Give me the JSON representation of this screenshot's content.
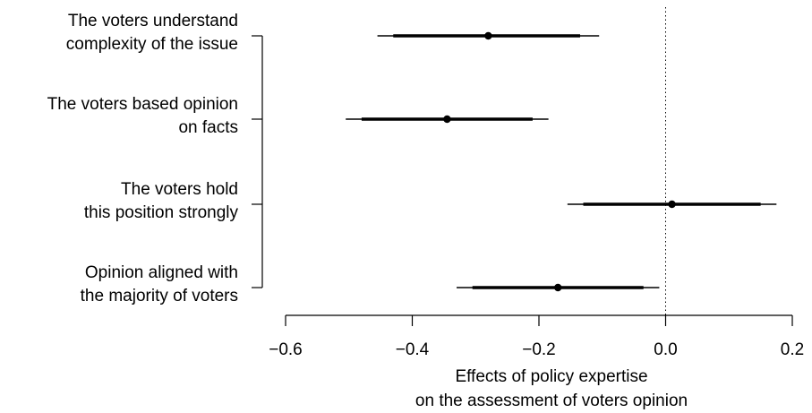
{
  "chart_data": {
    "type": "coefficient-plot",
    "title": "",
    "xlabel": [
      "Effects of policy expertise",
      "on the assessment of voters opinion"
    ],
    "ylabel": "",
    "xlim": [
      -0.6,
      0.2
    ],
    "xticks": [
      {
        "value": -0.6,
        "label": "−0.6"
      },
      {
        "value": -0.4,
        "label": "−0.4"
      },
      {
        "value": -0.2,
        "label": "−0.2"
      },
      {
        "value": 0.0,
        "label": "0.0"
      },
      {
        "value": 0.2,
        "label": "0.2"
      }
    ],
    "reference_line": 0.0,
    "grid": false,
    "rows": [
      {
        "label": [
          "The voters understand",
          "complexity of the issue"
        ],
        "estimate": -0.28,
        "ci_inner": [
          -0.43,
          -0.135
        ],
        "ci_outer": [
          -0.455,
          -0.105
        ]
      },
      {
        "label": [
          "The voters based opinion",
          "on facts"
        ],
        "estimate": -0.345,
        "ci_inner": [
          -0.48,
          -0.21
        ],
        "ci_outer": [
          -0.505,
          -0.185
        ]
      },
      {
        "label": [
          "The voters hold",
          "this position strongly"
        ],
        "estimate": 0.01,
        "ci_inner": [
          -0.13,
          0.15
        ],
        "ci_outer": [
          -0.155,
          0.175
        ]
      },
      {
        "label": [
          "Opinion aligned with",
          "the majority of voters"
        ],
        "estimate": -0.17,
        "ci_inner": [
          -0.305,
          -0.035
        ],
        "ci_outer": [
          -0.33,
          -0.01
        ]
      }
    ]
  }
}
